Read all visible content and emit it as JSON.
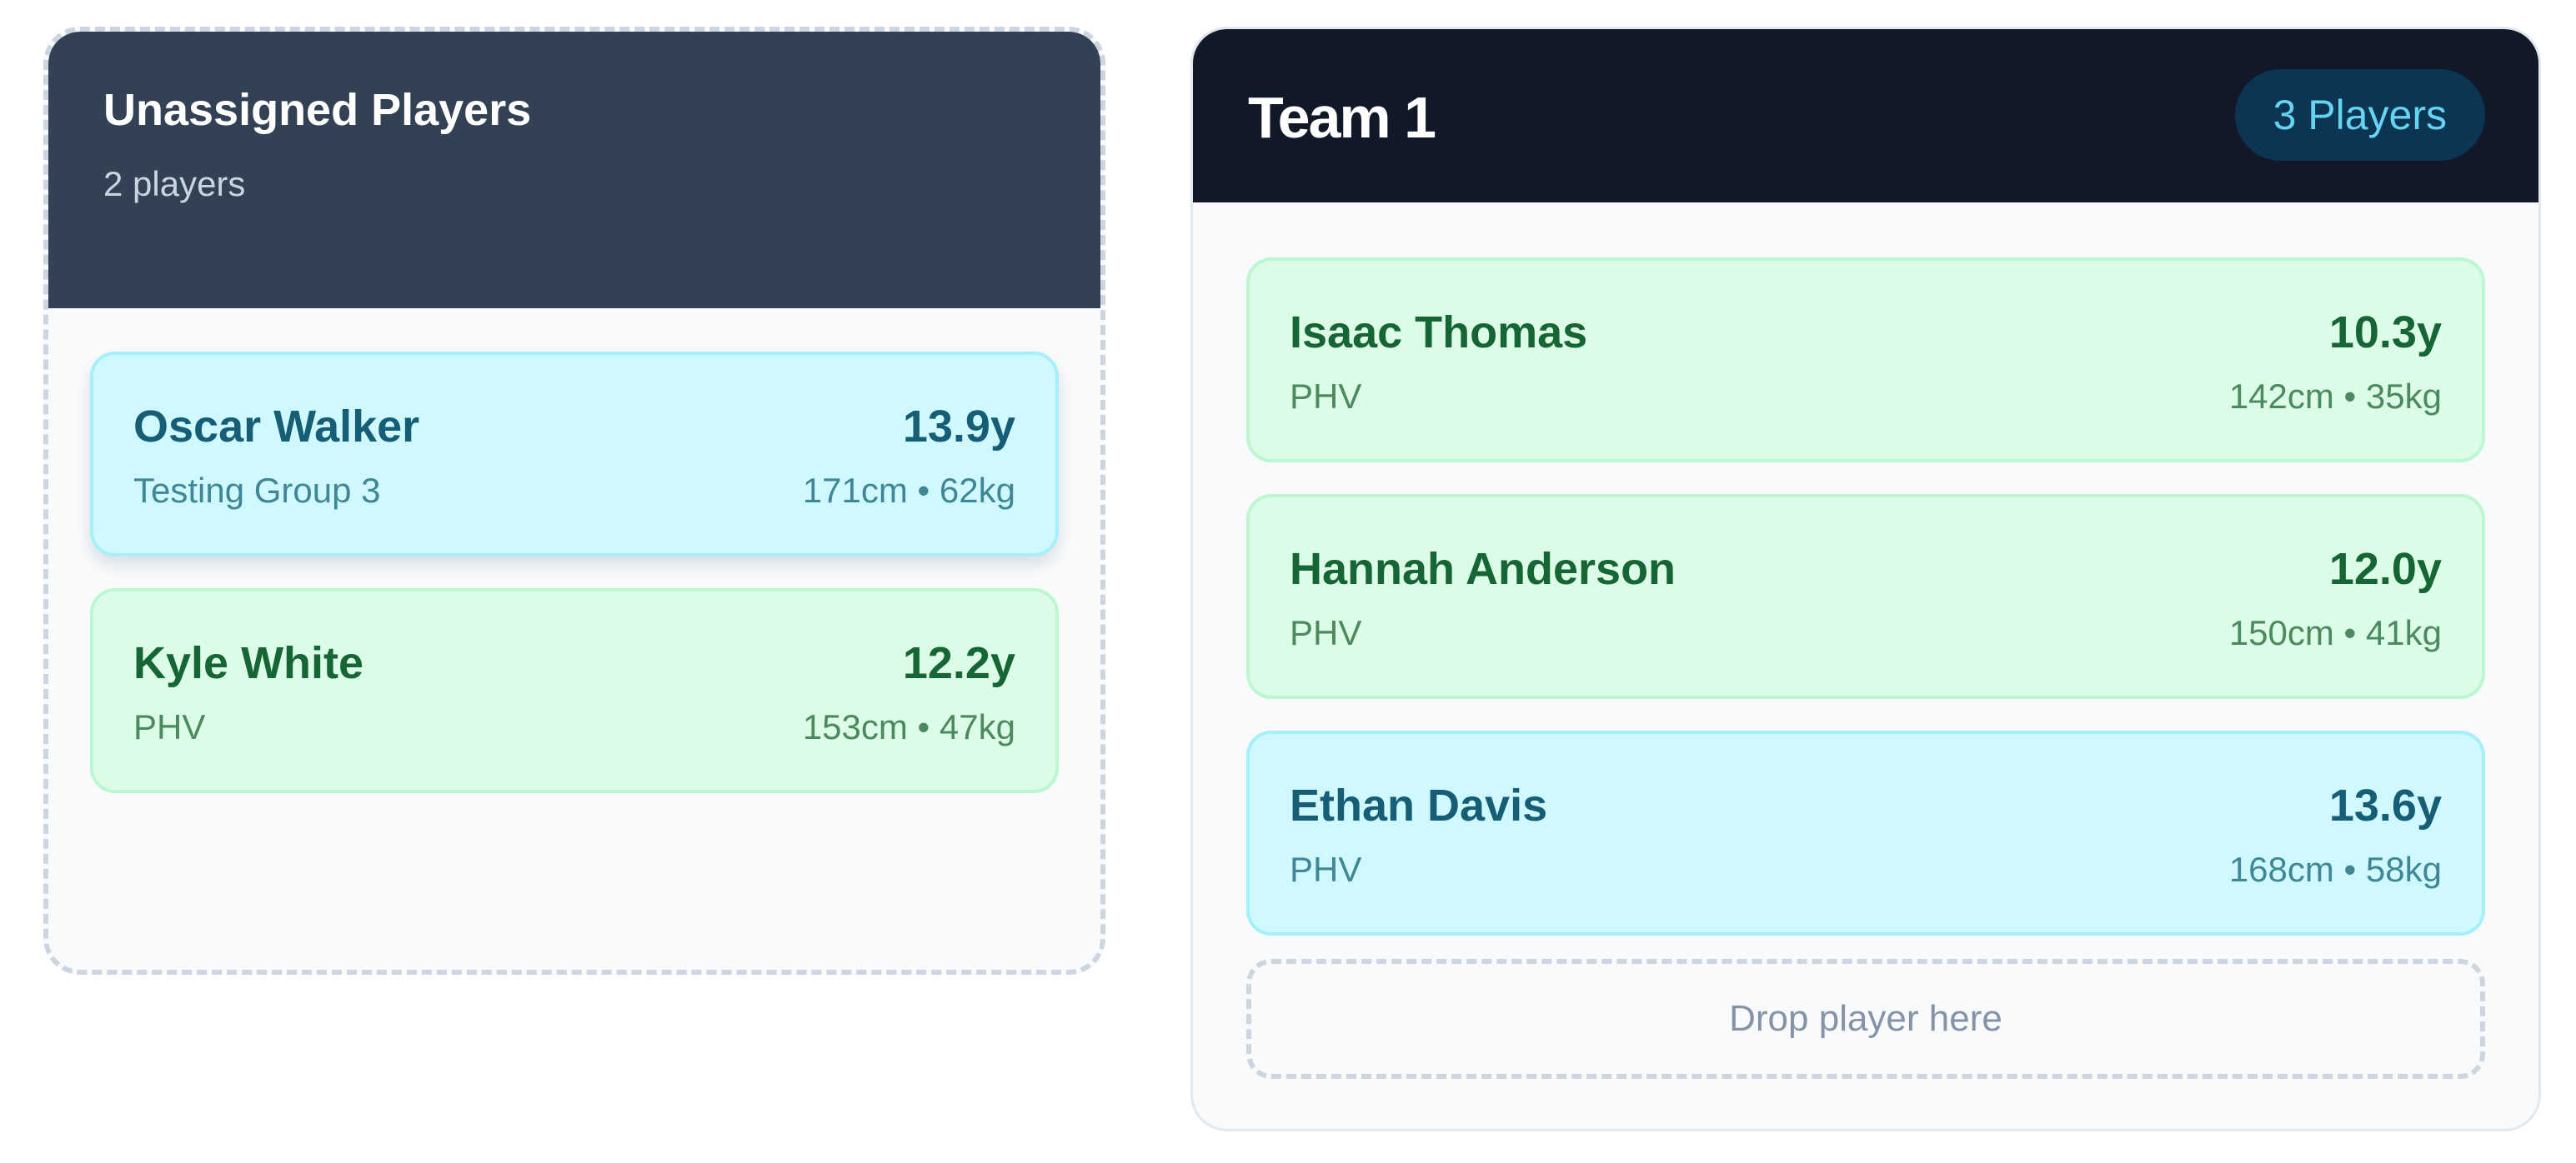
{
  "unassigned": {
    "title": "Unassigned Players",
    "count_label": "2 players",
    "players": [
      {
        "name": "Oscar Walker",
        "group": "Testing Group 3",
        "age": "13.9y",
        "stats": "171cm • 62kg",
        "color": "#cff9fe"
      },
      {
        "name": "Kyle White",
        "group": "PHV",
        "age": "12.2y",
        "stats": "153cm • 47kg",
        "color": "#dcfce7"
      }
    ]
  },
  "team": {
    "title": "Team 1",
    "badge": "3 Players",
    "players": [
      {
        "name": "Isaac Thomas",
        "group": "PHV",
        "age": "10.3y",
        "stats": "142cm • 35kg",
        "color": "#dcfce7"
      },
      {
        "name": "Hannah Anderson",
        "group": "PHV",
        "age": "12.0y",
        "stats": "150cm • 41kg",
        "color": "#dcfce7"
      },
      {
        "name": "Ethan Davis",
        "group": "PHV",
        "age": "13.6y",
        "stats": "168cm • 58kg",
        "color": "#cff9fe"
      }
    ],
    "drop_label": "Drop player here"
  },
  "colors": {
    "unassigned_header": "#334155",
    "team_header": "#111827",
    "badge_bg": "#0c3553",
    "badge_text": "#67d3f3"
  }
}
